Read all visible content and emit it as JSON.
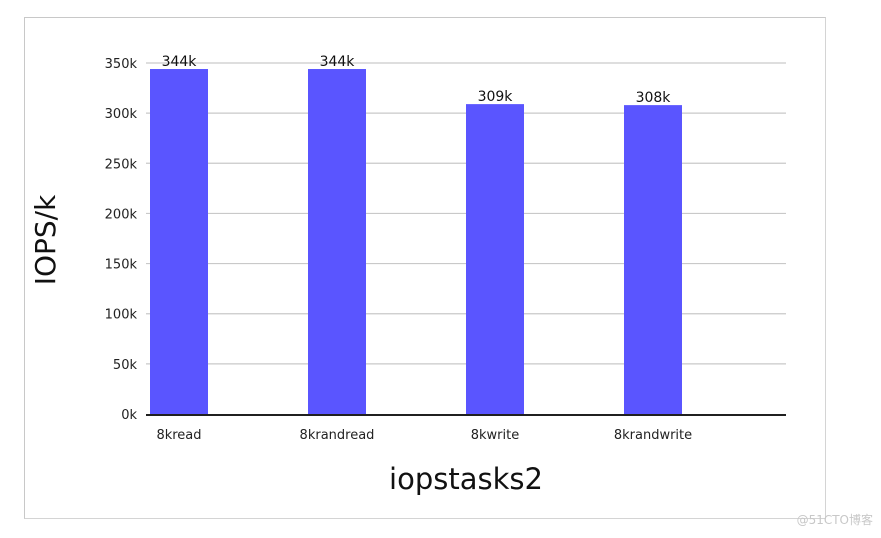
{
  "chart_data": {
    "type": "bar",
    "title": "",
    "xlabel": "iopstasks2",
    "ylabel": "IOPS/k",
    "categories": [
      "8kread",
      "8krandread",
      "8kwrite",
      "8krandwrite"
    ],
    "values": [
      344,
      344,
      309,
      308
    ],
    "value_labels": [
      "344k",
      "344k",
      "309k",
      "308k"
    ],
    "ylim": [
      0,
      350
    ],
    "yticks": [
      0,
      50,
      100,
      150,
      200,
      250,
      300,
      350
    ],
    "ytick_labels": [
      "0k",
      "50k",
      "100k",
      "150k",
      "200k",
      "250k",
      "300k",
      "350k"
    ],
    "grid": true,
    "legend": "none",
    "bar_color": "#5a55ff",
    "grid_color": "#c9c9c9",
    "axis_color": "#000000"
  },
  "watermark": "@51CTO博客"
}
